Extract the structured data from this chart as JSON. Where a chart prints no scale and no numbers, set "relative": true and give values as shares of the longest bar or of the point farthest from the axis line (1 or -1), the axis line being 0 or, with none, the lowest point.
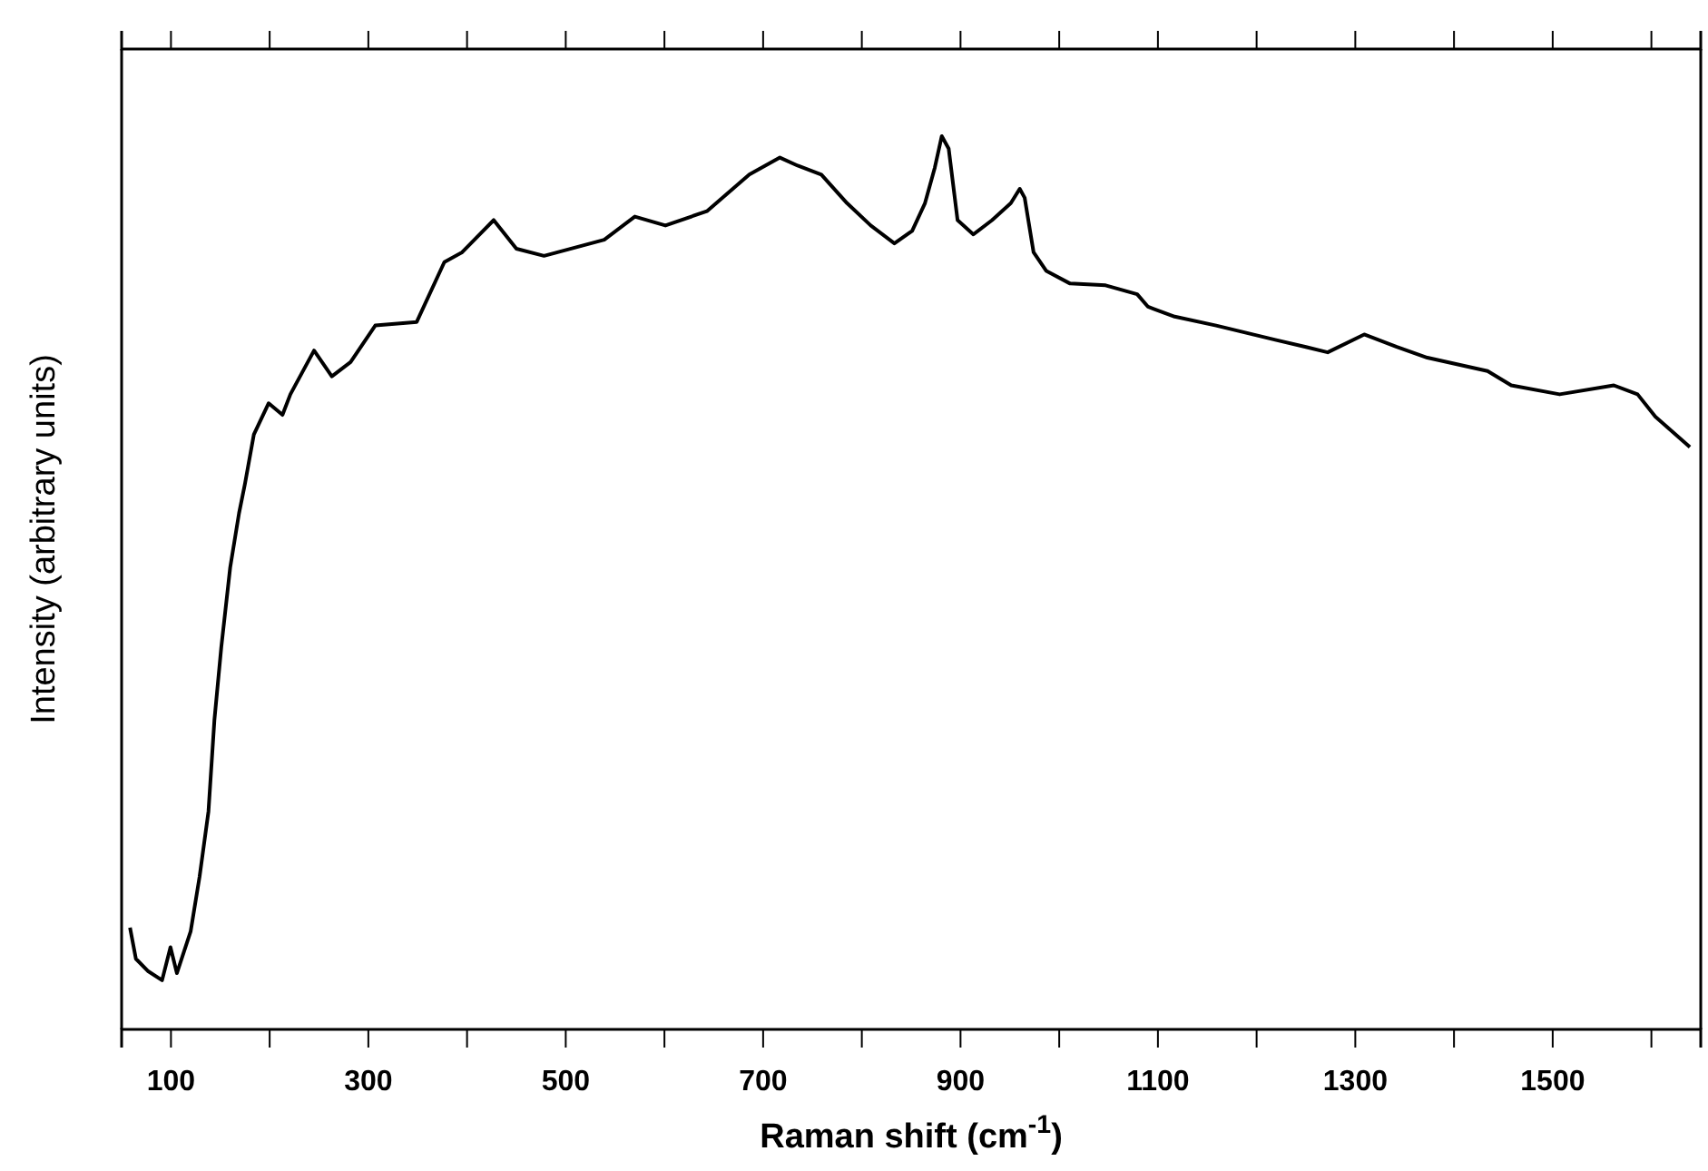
{
  "chart_data": {
    "type": "line",
    "relative": true,
    "xlabel": "Raman shift (cm$^{-1}$)",
    "ylabel": "Intensity (arbitrary units)",
    "xlim": [
      50,
      1650
    ],
    "xticks": [
      100,
      {
        "value": 200,
        "label": null
      },
      300,
      {
        "value": 400,
        "label": null
      },
      500,
      {
        "value": 600,
        "label": null
      },
      700,
      {
        "value": 800,
        "label": null
      },
      900,
      {
        "value": 1000,
        "label": null
      },
      1100,
      {
        "value": 1200,
        "label": null
      },
      1300,
      {
        "value": 1400,
        "label": null
      },
      1500,
      {
        "value": 1600,
        "label": null
      }
    ],
    "marker": "none",
    "line_style": "solid",
    "series": [
      {
        "color": "#000000",
        "x": [
          58.5,
          64.5,
          77,
          91,
          99.5,
          106,
          120,
          129,
          138,
          144,
          151,
          160,
          169,
          175,
          184,
          199,
          213,
          221,
          245,
          263,
          282,
          307,
          349,
          377,
          395,
          427,
          450,
          478,
          539,
          570,
          601,
          643,
          686,
          717,
          735,
          759,
          785,
          809,
          833,
          851,
          864,
          874,
          881,
          888,
          897,
          913,
          932,
          951,
          960,
          965,
          974,
          987,
          1011,
          1047,
          1079,
          1090,
          1117,
          1159,
          1219,
          1250,
          1272,
          1309,
          1342,
          1373,
          1434,
          1458,
          1507,
          1562,
          1586,
          1604,
          1639
        ],
        "values": [
          0.114,
          0.079,
          0.065,
          0.055,
          0.092,
          0.063,
          0.11,
          0.171,
          0.244,
          0.346,
          0.428,
          0.517,
          0.578,
          0.611,
          0.666,
          0.701,
          0.688,
          0.711,
          0.76,
          0.731,
          0.747,
          0.788,
          0.792,
          0.859,
          0.87,
          0.906,
          0.874,
          0.866,
          0.884,
          0.91,
          0.9,
          0.916,
          0.957,
          0.976,
          0.967,
          0.957,
          0.925,
          0.9,
          0.88,
          0.894,
          0.925,
          0.965,
          1.0,
          0.986,
          0.906,
          0.89,
          0.906,
          0.925,
          0.941,
          0.931,
          0.87,
          0.849,
          0.835,
          0.833,
          0.823,
          0.809,
          0.798,
          0.788,
          0.772,
          0.764,
          0.758,
          0.778,
          0.764,
          0.752,
          0.737,
          0.721,
          0.711,
          0.721,
          0.711,
          0.686,
          0.652
        ]
      }
    ]
  }
}
